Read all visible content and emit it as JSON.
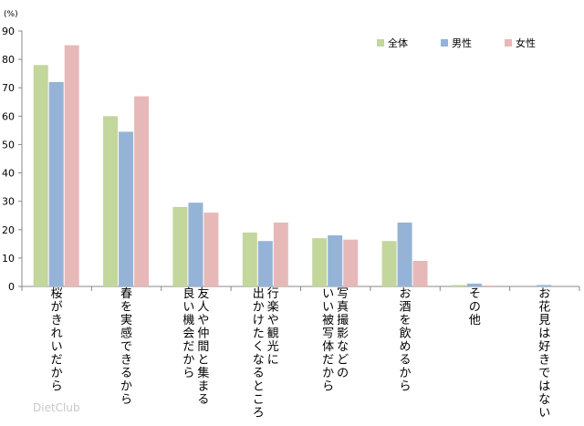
{
  "chart_data": {
    "type": "bar",
    "unit_label": "(%)",
    "ylim": [
      0,
      90
    ],
    "yticks": [
      0,
      10,
      20,
      30,
      40,
      50,
      60,
      70,
      80,
      90
    ],
    "grid": false,
    "legend_position": "top-right",
    "categories": [
      "桜がきれいだから",
      "春を実感できるから",
      "友人や仲間と集まる良い機会だから",
      "行楽や観光に出かけたくなるところ",
      "写真撮影などのいい被写体だから",
      "お酒を飲めるから",
      "その他",
      "お花見は好きではない"
    ],
    "category_lines": [
      [
        "桜がきれいだから"
      ],
      [
        "春を実感できるから"
      ],
      [
        "友人や仲間と集まる",
        "良い機会だから"
      ],
      [
        "行楽や観光に",
        "出かけたくなるところ"
      ],
      [
        "写真撮影などの",
        "いい被写体だから"
      ],
      [
        "お酒を飲めるから"
      ],
      [
        "その他"
      ],
      [
        "お花見は好きではない"
      ]
    ],
    "series": [
      {
        "name": "全体",
        "color": "#c3d69b",
        "values": [
          78,
          60,
          28,
          19,
          17,
          16,
          0.5,
          0
        ]
      },
      {
        "name": "男性",
        "color": "#95b3d7",
        "values": [
          72,
          54.5,
          29.5,
          16,
          18,
          22.5,
          1,
          0.5
        ]
      },
      {
        "name": "女性",
        "color": "#e6b9b8",
        "values": [
          85,
          67,
          26,
          22.5,
          16.5,
          9,
          0.3,
          0
        ]
      }
    ]
  },
  "watermark": "DietClub"
}
